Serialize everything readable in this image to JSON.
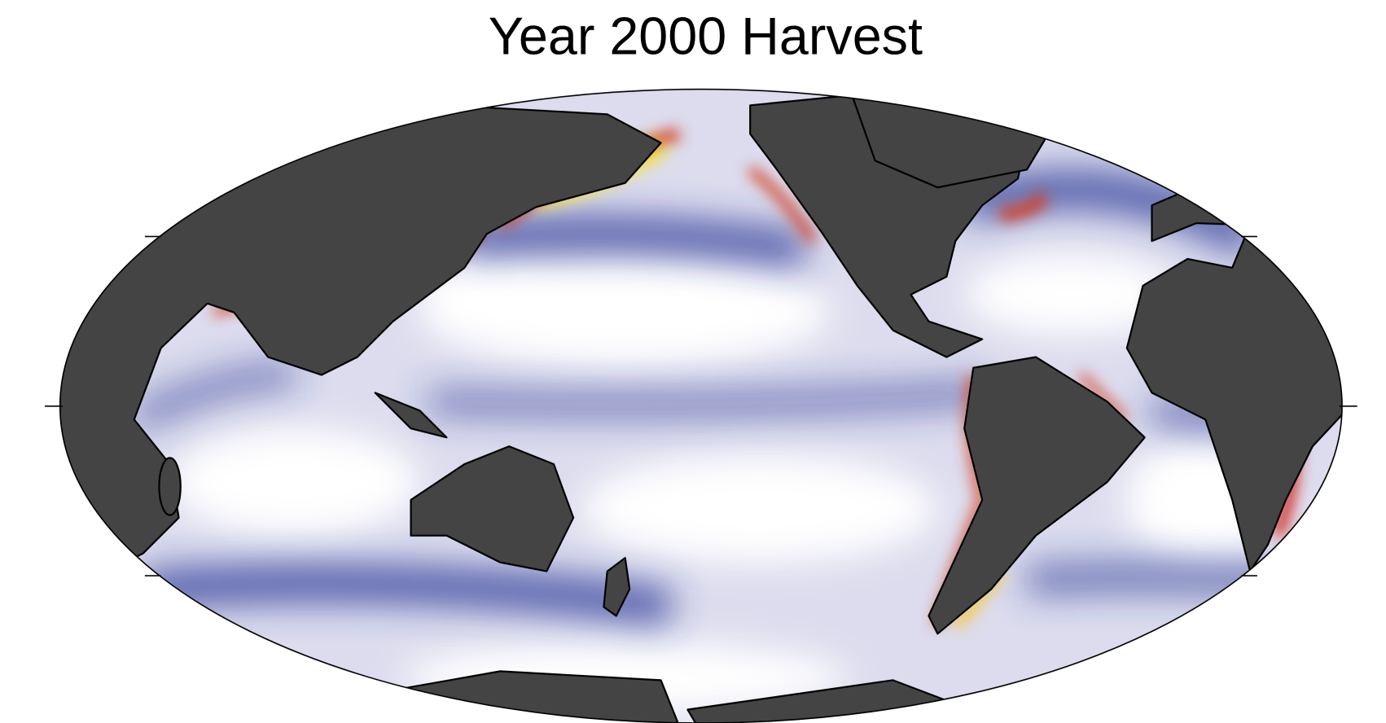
{
  "title": "Year 2000 Harvest"
}
